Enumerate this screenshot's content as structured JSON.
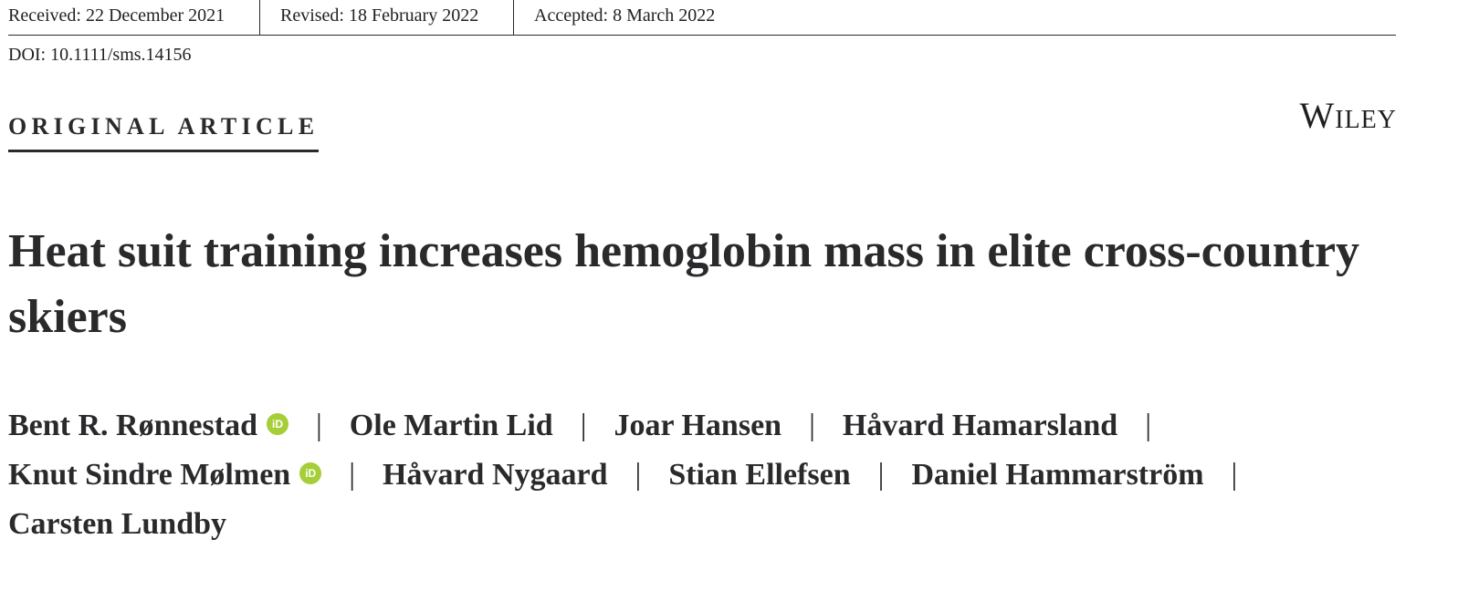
{
  "dates": {
    "received": "Received: 22 December 2021",
    "revised": "Revised: 18 February 2022",
    "accepted": "Accepted: 8 March 2022"
  },
  "doi": "DOI: 10.1111/sms.14156",
  "article_type": "ORIGINAL ARTICLE",
  "publisher": "Wiley",
  "title": "Heat suit training increases hemoglobin mass in elite cross-country skiers",
  "authors": [
    {
      "name": "Bent R. Rønnestad",
      "orcid": true
    },
    {
      "name": "Ole Martin Lid",
      "orcid": false
    },
    {
      "name": "Joar Hansen",
      "orcid": false
    },
    {
      "name": "Håvard Hamarsland",
      "orcid": false
    },
    {
      "name": "Knut Sindre Mølmen",
      "orcid": true
    },
    {
      "name": "Håvard Nygaard",
      "orcid": false
    },
    {
      "name": "Stian Ellefsen",
      "orcid": false
    },
    {
      "name": "Daniel Hammarström",
      "orcid": false
    },
    {
      "name": "Carsten Lundby",
      "orcid": false
    }
  ],
  "separator": "|",
  "orcid_label": "iD",
  "colors": {
    "orcid": "#a6ce39",
    "text": "#2a2a2c"
  }
}
